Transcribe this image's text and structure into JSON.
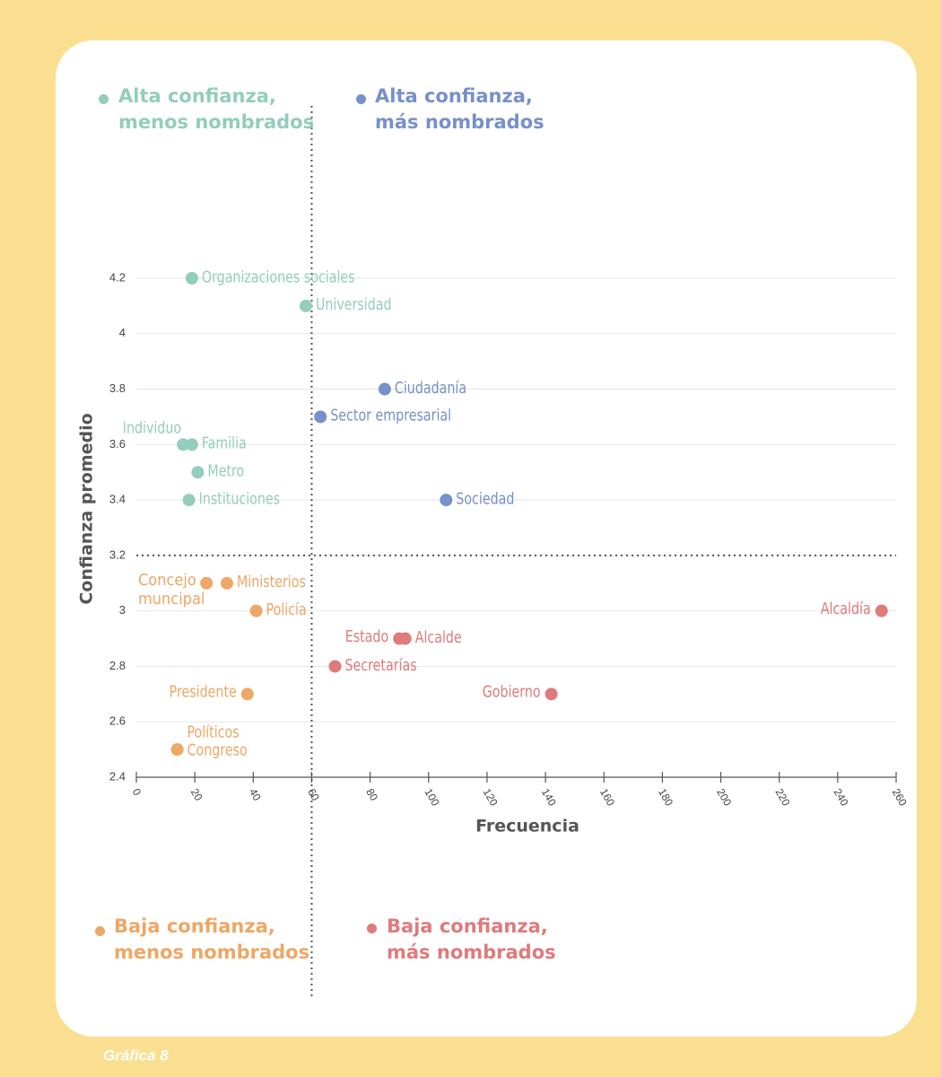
{
  "chart_data": {
    "type": "scatter",
    "x_label": "Frecuencia",
    "y_label": "Confianza promedio",
    "xlim": [
      0,
      260
    ],
    "xticks": [
      0,
      20,
      40,
      60,
      80,
      100,
      120,
      140,
      160,
      180,
      200,
      220,
      240,
      260
    ],
    "ylim": [
      2.4,
      4.2
    ],
    "yticks": [
      2.4,
      2.6,
      2.8,
      3,
      3.2,
      3.4,
      3.6,
      3.8,
      4,
      4.2
    ],
    "grid": true,
    "quadrant_lines": {
      "x": 60,
      "y": 3.2
    },
    "series": [
      {
        "name": "Alta confianza,\nmenos nombrados",
        "color": "#93cdbc",
        "labels": [
          "Organizaciones sociales",
          "Universidad",
          "Individuo",
          "Familia",
          "Metro",
          "Instituciones"
        ],
        "x": [
          19,
          58,
          16,
          19,
          21,
          18
        ],
        "values": [
          4.2,
          4.1,
          3.6,
          3.6,
          3.5,
          3.4
        ]
      },
      {
        "name": "Alta confianza,\nmás nombrados",
        "color": "#7790c9",
        "labels": [
          "Ciudadanía",
          "Sector empresarial",
          "Sociedad"
        ],
        "x": [
          85,
          63,
          106
        ],
        "values": [
          3.8,
          3.7,
          3.4
        ]
      },
      {
        "name": "Baja confianza,\nmenos nombrados",
        "color": "#eda766",
        "labels": [
          "Concejo muncipal",
          "Ministerios",
          "Policía",
          "Presidente",
          "Políticos",
          "Congreso"
        ],
        "x": [
          24,
          31,
          41,
          38,
          14,
          14
        ],
        "values": [
          3.1,
          3.1,
          3,
          2.7,
          2.5,
          2.5
        ]
      },
      {
        "name": "Baja confianza,\nmás nombrados",
        "color": "#de7b7b",
        "labels": [
          "Alcaldía",
          "Estado",
          "Alcalde",
          "Secretarías",
          "Gobierno"
        ],
        "x": [
          255,
          90,
          92,
          68,
          142
        ],
        "values": [
          3,
          2.9,
          2.9,
          2.8,
          2.7
        ]
      }
    ]
  },
  "footer": "Gráfica 8"
}
